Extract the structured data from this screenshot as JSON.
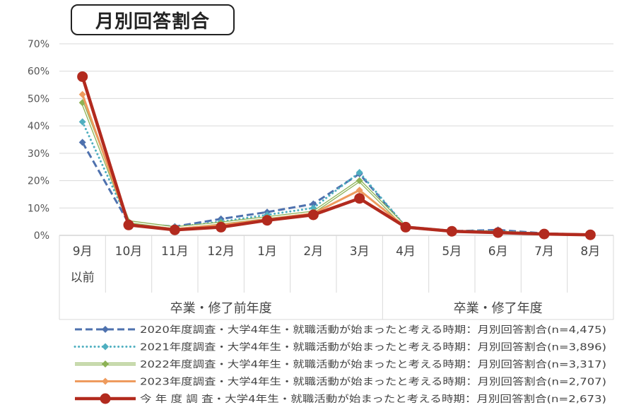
{
  "chart_data": {
    "type": "line",
    "title": "月別回答割合",
    "categories": [
      "9月",
      "10月",
      "11月",
      "12月",
      "1月",
      "2月",
      "3月",
      "4月",
      "5月",
      "6月",
      "7月",
      "8月"
    ],
    "category_sublabels": [
      "以前",
      "",
      "",
      "",
      "",
      "",
      "",
      "",
      "",
      "",
      "",
      ""
    ],
    "groups": [
      {
        "label": "卒業・修了前年度",
        "span": 7
      },
      {
        "label": "卒業・修了年度",
        "span": 5
      }
    ],
    "ylim": [
      0,
      70
    ],
    "yticks": [
      "0%",
      "10%",
      "20%",
      "30%",
      "40%",
      "50%",
      "60%",
      "70%"
    ],
    "grid": true,
    "legend_position": "bottom",
    "series": [
      {
        "name": "2020年度調査・大学4年生・就職活動が始まったと考える時期：月別回答割合(n=4,475)",
        "color": "#4E71AE",
        "style": "dashed",
        "marker": "diamond",
        "width": 3,
        "values": [
          34,
          4.5,
          3.2,
          6,
          8.5,
          11.5,
          22.5,
          3,
          1.5,
          2,
          0.7,
          0.3
        ]
      },
      {
        "name": "2021年度調査・大学4年生・就職活動が始まったと考える時期：月別回答割合(n=3,896)",
        "color": "#4FAFC0",
        "style": "dotted",
        "marker": "diamond",
        "width": 3,
        "values": [
          41.5,
          5,
          3,
          5,
          7.5,
          10,
          23,
          3.2,
          1.7,
          1.5,
          0.6,
          0.2
        ]
      },
      {
        "name": "2022年度調査・大学4年生・就職活動が始まったと考える時期：月別回答割合(n=3,317)",
        "color": "#8DB255",
        "style": "double",
        "marker": "diamond",
        "width": 2,
        "values": [
          48.5,
          5,
          2.8,
          4.5,
          6.5,
          8.5,
          20,
          3,
          1.5,
          1.2,
          0.5,
          0.2
        ]
      },
      {
        "name": "2023年度調査・大学4年生・就職活動が始まったと考える時期：月別回答割合(n=2,707)",
        "color": "#EE9B5E",
        "style": "solid",
        "marker": "diamond",
        "width": 3,
        "values": [
          51.5,
          4,
          2.3,
          3.8,
          5.8,
          8,
          16.5,
          3,
          1.5,
          1.2,
          0.5,
          0.2
        ]
      },
      {
        "name": "今 年 度 調 査・大学4年生・就職活動が始まったと考える時期：月別回答割合(n=2,673)",
        "color": "#B22A1E",
        "style": "solid",
        "marker": "circle",
        "width": 4.5,
        "values": [
          58,
          3.8,
          2,
          3,
          5.5,
          7.5,
          13.5,
          3,
          1.5,
          1,
          0.5,
          0.2
        ]
      }
    ]
  }
}
